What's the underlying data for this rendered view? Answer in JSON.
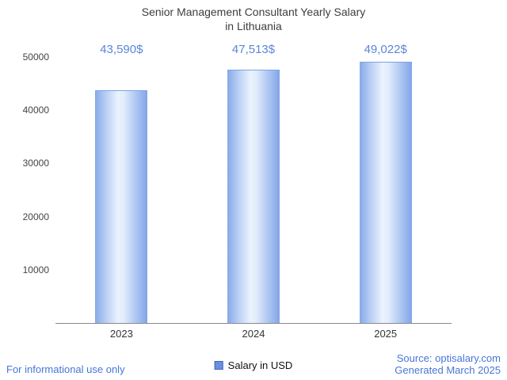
{
  "chart_data": {
    "type": "bar",
    "title": "Senior Management Consultant Yearly Salary in Lithuania",
    "title_lines": [
      "Senior Management Consultant Yearly Salary",
      "in Lithuania"
    ],
    "categories": [
      "2023",
      "2024",
      "2025"
    ],
    "values": [
      43590,
      47513,
      49022
    ],
    "value_labels": [
      "43,590$",
      "47,513$",
      "49,022$"
    ],
    "ylim": [
      0,
      50000
    ],
    "yticks": [
      10000,
      20000,
      30000,
      40000,
      50000
    ],
    "ytick_labels": [
      "10000",
      "20000",
      "30000",
      "40000",
      "50000"
    ],
    "grid": false,
    "legend_position": "bottom-center",
    "bar_gradient": [
      "#86a9e8",
      "#ebf2fd",
      "#82a5e7"
    ],
    "value_label_color": "#5b85d9"
  },
  "legend": {
    "label": "Salary in USD",
    "marker_color": "#6a8fdd"
  },
  "footer": {
    "left_note": "For informational use only",
    "source": "Source: optisalary.com",
    "generated": "Generated March 2025"
  },
  "colors": {
    "accent_blue": "#4676d7",
    "axis_line": "#8a8a8a",
    "title_text": "#3d3d3d"
  }
}
